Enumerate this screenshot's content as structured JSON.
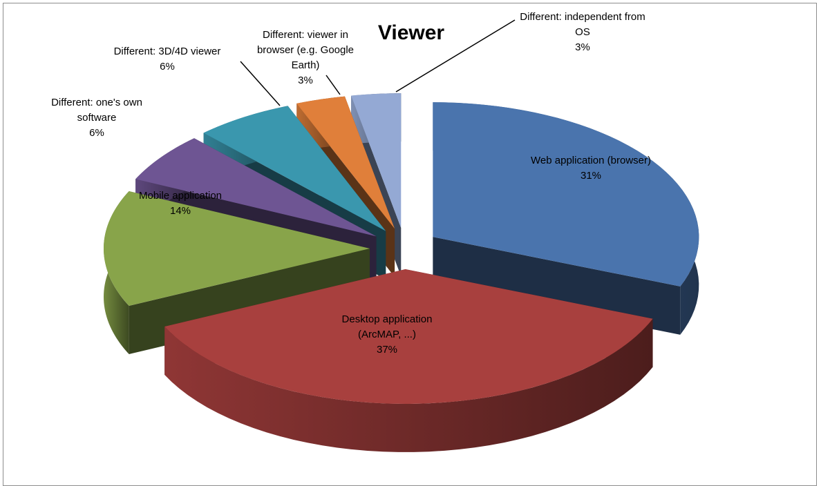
{
  "chart_data": {
    "type": "pie",
    "style": "3d-exploded",
    "title": "Viewer",
    "slices": [
      {
        "label_lines": [
          "Web application (browser)"
        ],
        "value": 31,
        "value_label": "31%",
        "color": "#4a74ad"
      },
      {
        "label_lines": [
          "Desktop application",
          "(ArcMAP, ...)"
        ],
        "value": 37,
        "value_label": "37%",
        "color": "#a8403e"
      },
      {
        "label_lines": [
          "Mobile application"
        ],
        "value": 14,
        "value_label": "14%",
        "color": "#88a44a"
      },
      {
        "label_lines": [
          "Different: one's own",
          "software"
        ],
        "value": 6,
        "value_label": "6%",
        "color": "#6e5593"
      },
      {
        "label_lines": [
          "Different: 3D/4D viewer"
        ],
        "value": 6,
        "value_label": "6%",
        "color": "#3a97ae"
      },
      {
        "label_lines": [
          "Different: viewer in",
          "browser (e.g. Google",
          "Earth)"
        ],
        "value": 3,
        "value_label": "3%",
        "color": "#e07f3a"
      },
      {
        "label_lines": [
          "Different: independent from",
          "OS"
        ],
        "value": 3,
        "value_label": "3%",
        "color": "#94a9d4"
      }
    ]
  }
}
